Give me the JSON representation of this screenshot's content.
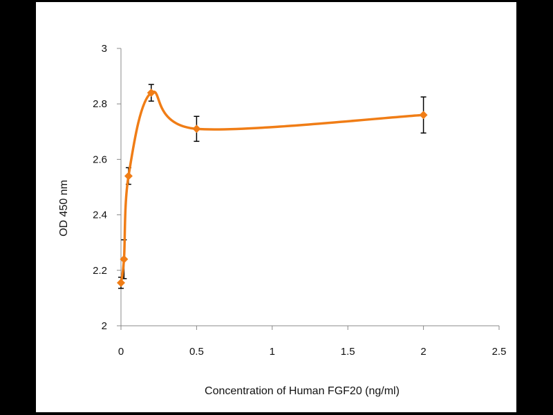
{
  "chart_data": {
    "type": "scatter",
    "title": "",
    "xlabel": "Concentration of Human FGF20 (ng/ml)",
    "ylabel": "OD 450 nm",
    "xlim": [
      0,
      2.5
    ],
    "ylim": [
      2,
      3
    ],
    "x_ticks": [
      "0",
      "0.5",
      "1",
      "1.5",
      "2",
      "2.5"
    ],
    "y_ticks": [
      "2",
      "2.2",
      "2.4",
      "2.6",
      "2.8",
      "3"
    ],
    "grid": false,
    "legend": "none",
    "smooth_line": true,
    "series": [
      {
        "color": "#f07d16",
        "marker": "diamond",
        "points": [
          {
            "x": 0.0,
            "y": 2.155,
            "err": 0.02
          },
          {
            "x": 0.02,
            "y": 2.24,
            "err": 0.07
          },
          {
            "x": 0.05,
            "y": 2.54,
            "err": 0.03
          },
          {
            "x": 0.2,
            "y": 2.84,
            "err": 0.03
          },
          {
            "x": 0.5,
            "y": 2.71,
            "err": 0.045
          },
          {
            "x": 2.0,
            "y": 2.76,
            "err": 0.065
          }
        ]
      }
    ]
  }
}
